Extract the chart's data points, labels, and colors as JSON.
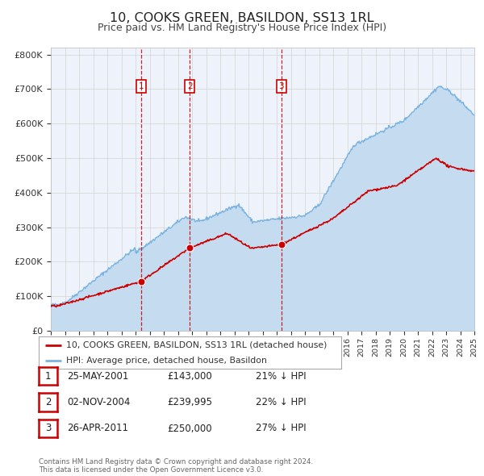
{
  "title": "10, COOKS GREEN, BASILDON, SS13 1RL",
  "subtitle": "Price paid vs. HM Land Registry's House Price Index (HPI)",
  "background_color": "#ffffff",
  "plot_bg_color": "#edf2fb",
  "grid_color": "#d8d8d8",
  "ylabel_ticks": [
    "£0",
    "£100K",
    "£200K",
    "£300K",
    "£400K",
    "£500K",
    "£600K",
    "£700K",
    "£800K"
  ],
  "ytick_values": [
    0,
    100000,
    200000,
    300000,
    400000,
    500000,
    600000,
    700000,
    800000
  ],
  "ylim": [
    0,
    820000
  ],
  "year_start": 1995,
  "year_end": 2025,
  "hpi_color": "#7ab3e0",
  "hpi_fill_color": "#c5dcf0",
  "price_color": "#cc0000",
  "sale_marker_color": "#cc0000",
  "vline_color": "#cc0000",
  "legend_label_price": "10, COOKS GREEN, BASILDON, SS13 1RL (detached house)",
  "legend_label_hpi": "HPI: Average price, detached house, Basildon",
  "sales": [
    {
      "label": "1",
      "date": 2001.38,
      "price": 143000
    },
    {
      "label": "2",
      "date": 2004.84,
      "price": 239995
    },
    {
      "label": "3",
      "date": 2011.32,
      "price": 250000
    }
  ],
  "table_rows": [
    {
      "num": "1",
      "date": "25-MAY-2001",
      "price": "£143,000",
      "pct": "21% ↓ HPI"
    },
    {
      "num": "2",
      "date": "02-NOV-2004",
      "price": "£239,995",
      "pct": "22% ↓ HPI"
    },
    {
      "num": "3",
      "date": "26-APR-2011",
      "price": "£250,000",
      "pct": "27% ↓ HPI"
    }
  ],
  "footnote": "Contains HM Land Registry data © Crown copyright and database right 2024.\nThis data is licensed under the Open Government Licence v3.0."
}
